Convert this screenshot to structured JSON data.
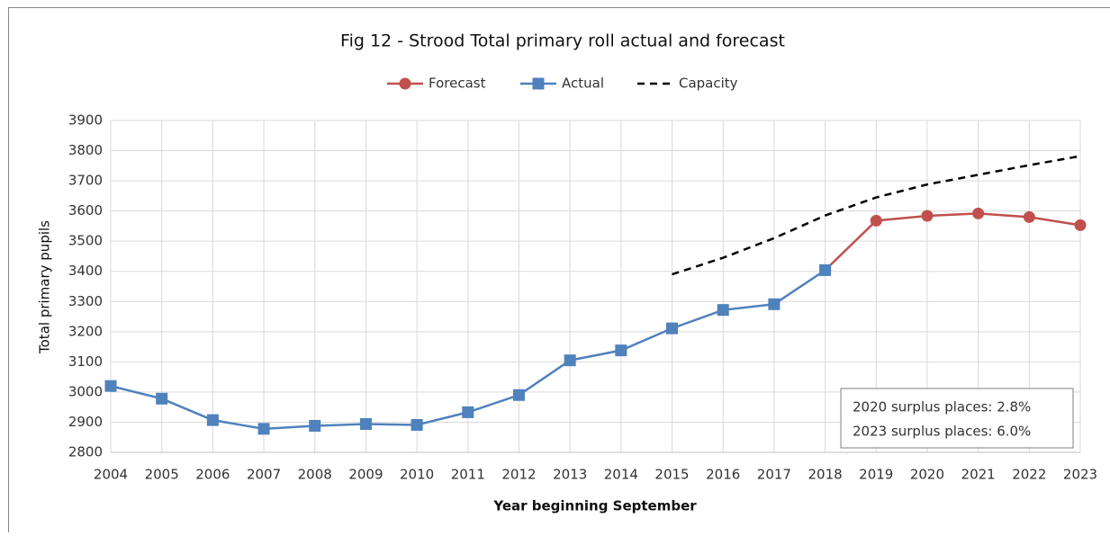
{
  "chart_data": {
    "type": "line",
    "title": "Fig 12 - Strood Total primary roll actual and forecast",
    "x_label": "Year beginning September",
    "y_label": "Total primary pupils",
    "x": [
      2004,
      2005,
      2006,
      2007,
      2008,
      2009,
      2010,
      2011,
      2012,
      2013,
      2014,
      2015,
      2016,
      2017,
      2018,
      2019,
      2020,
      2021,
      2022,
      2023
    ],
    "xlim": [
      2004,
      2023
    ],
    "ylim": [
      2800,
      3900
    ],
    "yticks": [
      2800,
      2900,
      3000,
      3100,
      3200,
      3300,
      3400,
      3500,
      3600,
      3700,
      3800,
      3900
    ],
    "grid": true,
    "legend": "top",
    "series": [
      {
        "name": "Forecast",
        "color": "#c0504d",
        "marker": "circle",
        "dash": false,
        "values": [
          null,
          null,
          null,
          null,
          null,
          null,
          null,
          null,
          null,
          null,
          null,
          null,
          null,
          null,
          3404,
          3568,
          3584,
          3592,
          3580,
          3553
        ]
      },
      {
        "name": "Actual",
        "color": "#4f81bd",
        "marker": "square",
        "dash": false,
        "values": [
          3020,
          2978,
          2907,
          2878,
          2888,
          2894,
          2891,
          2933,
          2990,
          3105,
          3138,
          3211,
          3272,
          3291,
          3404,
          null,
          null,
          null,
          null,
          null
        ]
      },
      {
        "name": "Capacity",
        "color": "#000000",
        "marker": "none",
        "dash": true,
        "values": [
          null,
          null,
          null,
          null,
          null,
          null,
          null,
          null,
          null,
          null,
          null,
          3390,
          3445,
          3510,
          3585,
          3645,
          3688,
          3720,
          3752,
          3782
        ]
      }
    ],
    "annotations": [
      "2020 surplus places: 2.8%",
      "2023 surplus places: 6.0%"
    ]
  }
}
